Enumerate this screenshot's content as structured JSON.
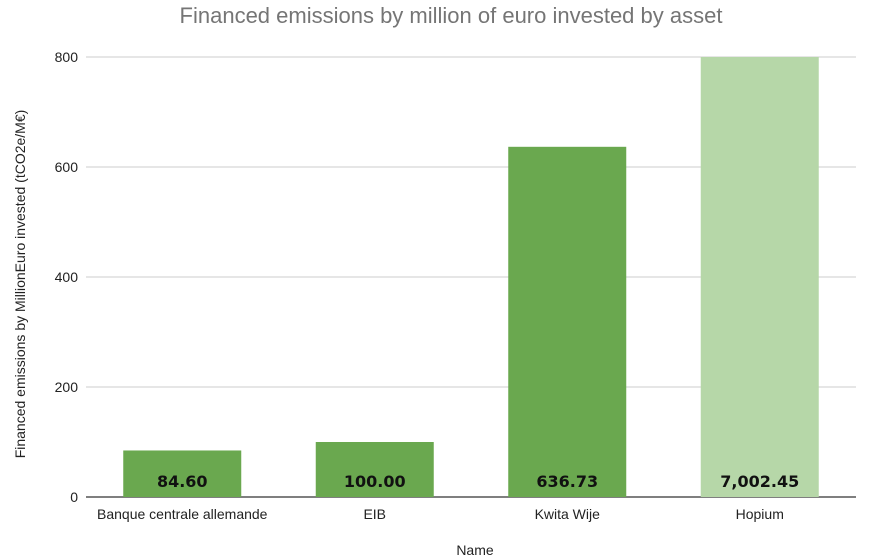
{
  "chart_data": {
    "type": "bar",
    "title": "Financed emissions by million of euro invested by asset",
    "xlabel": "Name",
    "ylabel": "Financed emissions by MillionEuro invested (tCO2e/M€)",
    "categories": [
      "Banque centrale allemande",
      "EIB",
      "Kwita Wije",
      "Hopium"
    ],
    "values": [
      84.6,
      100.0,
      636.73,
      7002.45
    ],
    "data_labels": [
      "84.60",
      "100.00",
      "636.73",
      "7,002.45"
    ],
    "ylim": [
      0,
      800
    ],
    "yticks": [
      0,
      200,
      400,
      600,
      800
    ],
    "ytick_labels": [
      "0",
      "200",
      "400",
      "600",
      "800"
    ],
    "grid": true,
    "clipped_at_axis_max": [
      false,
      false,
      false,
      true
    ],
    "colors": {
      "bar": "#6aa84f",
      "bar_clipped": "#b6d7a8",
      "grid": "#cccccc",
      "axis": "#333333"
    }
  }
}
